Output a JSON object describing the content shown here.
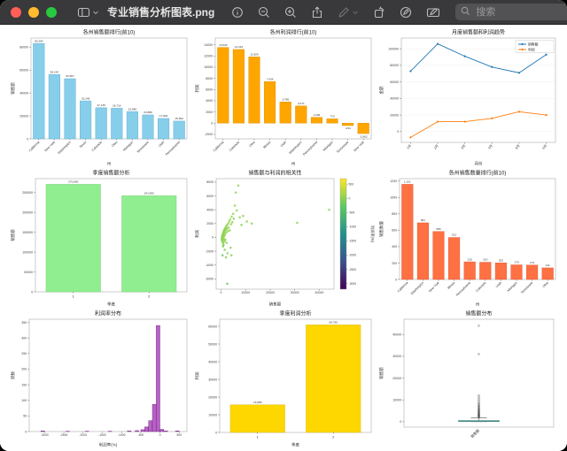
{
  "window": {
    "title": "专业销售分析图表.png"
  },
  "toolbar": {
    "search_placeholder": "搜索",
    "icons": {
      "sidebar": "split-panel",
      "chevron": "chevron-down",
      "info": "circled-i",
      "zoom_out": "magnifier-minus",
      "zoom_in": "magnifier-plus",
      "share": "box-arrow-up",
      "markup_pencil": "pencil (dimmed)",
      "rotate": "rotate-square-arrow",
      "annotate": "pen-in-circle",
      "markup_toolbar": "pencil-box",
      "search": "magnifier"
    }
  },
  "chart_data": [
    {
      "type": "bar",
      "rotate_xticks": true,
      "title": "各州销售额排行(前10)",
      "xlabel": "州",
      "ylabel": "销售额",
      "color": "#87CEEB",
      "edge": "#5aa7c9",
      "categories": [
        "California",
        "New York",
        "Washington",
        "Texas",
        "Colorado",
        "Ohio",
        "Michigan",
        "Tennessee",
        "Utah",
        "Pennsylvania"
      ],
      "values": [
        83254,
        56144,
        52507,
        33146,
        27135,
        26714,
        23848,
        20888,
        17802,
        15502
      ],
      "labels": [
        "83,254",
        "56,144",
        "52,507",
        "33,146",
        "27,135",
        "26,714",
        "23,848",
        "20,888",
        "17,802",
        "15,502"
      ],
      "ylim": [
        0,
        88000
      ],
      "yticks": [
        0,
        20000,
        40000,
        60000,
        80000
      ]
    },
    {
      "type": "bar",
      "rotate_xticks": true,
      "title": "各州利润排行(前10)",
      "xlabel": "州",
      "ylabel": "利润",
      "color": "#FFA500",
      "edge": "#d98c00",
      "categories": [
        "California",
        "Colorado",
        "Ohio",
        "Illinois",
        "Utah",
        "Washington",
        "Pennsylvania",
        "Michigan",
        "Tennessee",
        "New York"
      ],
      "values": [
        13525,
        13162,
        11829,
        7434,
        3786,
        3071,
        1049,
        770,
        -434,
        -1862
      ],
      "labels": [
        "13,525",
        "13,162",
        "11,829",
        "7,434",
        "3,786",
        "3,071",
        "1,049",
        "770",
        "-434",
        "-1,862"
      ],
      "ylim": [
        -2800,
        15200
      ],
      "yticks": [
        -2000,
        0,
        2000,
        4000,
        6000,
        8000,
        10000,
        12000,
        14000
      ]
    },
    {
      "type": "line",
      "title": "月度销售额和利润趋势",
      "xlabel": "月份",
      "ylabel": "金额",
      "categories": [
        "1月",
        "2月",
        "3月",
        "4月",
        "5月",
        "6月"
      ],
      "series": [
        {
          "name": "销售额",
          "color": "#1f77b4",
          "values": [
            73000,
            106000,
            91000,
            78000,
            71000,
            93000
          ]
        },
        {
          "name": "利润",
          "color": "#ff7f0e",
          "values": [
            -7000,
            12000,
            12000,
            16000,
            24000,
            20000
          ]
        }
      ],
      "ylim": [
        -13000,
        113000
      ],
      "yticks": [
        0,
        20000,
        40000,
        60000,
        80000,
        100000
      ]
    },
    {
      "type": "bar",
      "rotate_xticks": false,
      "title": "季度销售额分析",
      "xlabel": "季度",
      "ylabel": "销售额",
      "color": "#90EE90",
      "edge": "#6fcc6f",
      "categories": [
        "1",
        "2"
      ],
      "values": [
        270690,
        241850
      ],
      "labels": [
        "270,690",
        "241,850"
      ],
      "ylim": [
        0,
        285000
      ],
      "yticks": [
        0,
        50000,
        100000,
        150000,
        200000,
        250000
      ]
    },
    {
      "type": "scatter",
      "title": "销售额与利润的相关性",
      "xlabel": "销售额",
      "ylabel": "利润",
      "colorbar_label": "利润率(%)",
      "xlim": [
        -2000,
        46000
      ],
      "xticks": [
        0,
        10000,
        20000,
        30000,
        40000
      ],
      "ylim": [
        -7500,
        8500
      ],
      "yticks": [
        -6000,
        -4000,
        -2000,
        0,
        2000,
        4000,
        6000,
        8000
      ],
      "color_domain": [
        -3200,
        700
      ],
      "colorbar_ticks": [
        500,
        0,
        -500,
        -1000,
        -1500,
        -2000,
        -2500,
        -3000
      ],
      "points": [
        [
          250,
          -150,
          12
        ],
        [
          300,
          -350,
          5
        ],
        [
          350,
          80,
          18
        ],
        [
          400,
          -500,
          2
        ],
        [
          450,
          150,
          20
        ],
        [
          500,
          350,
          24
        ],
        [
          550,
          -250,
          8
        ],
        [
          600,
          -700,
          -15
        ],
        [
          650,
          200,
          22
        ],
        [
          700,
          450,
          26
        ],
        [
          750,
          -100,
          14
        ],
        [
          800,
          600,
          28
        ],
        [
          850,
          -900,
          -22
        ],
        [
          900,
          300,
          24
        ],
        [
          950,
          750,
          30
        ],
        [
          1000,
          -400,
          4
        ],
        [
          1050,
          500,
          26
        ],
        [
          1100,
          900,
          31
        ],
        [
          1150,
          -200,
          10
        ],
        [
          1200,
          650,
          28
        ],
        [
          1250,
          1050,
          32
        ],
        [
          1300,
          150,
          18
        ],
        [
          1350,
          800,
          30
        ],
        [
          1400,
          -600,
          -8
        ],
        [
          1450,
          950,
          31
        ],
        [
          1500,
          1200,
          33
        ],
        [
          1600,
          400,
          22
        ],
        [
          1700,
          1350,
          34
        ],
        [
          1800,
          -350,
          6
        ],
        [
          1900,
          1100,
          32
        ],
        [
          2000,
          1500,
          34
        ],
        [
          2100,
          700,
          26
        ],
        [
          2200,
          1650,
          35
        ],
        [
          2300,
          -800,
          -12
        ],
        [
          2400,
          1250,
          32
        ],
        [
          2500,
          1800,
          36
        ],
        [
          2700,
          900,
          27
        ],
        [
          2900,
          2000,
          36
        ],
        [
          3100,
          1400,
          32
        ],
        [
          3300,
          2300,
          38
        ],
        [
          3500,
          1000,
          25
        ],
        [
          3700,
          2600,
          39
        ],
        [
          3900,
          -1500,
          -25
        ],
        [
          4100,
          1900,
          33
        ],
        [
          4300,
          3000,
          40
        ],
        [
          4600,
          2200,
          35
        ],
        [
          4900,
          3400,
          42
        ],
        [
          5200,
          2700,
          38
        ],
        [
          5600,
          4600,
          45
        ],
        [
          6000,
          6500,
          52
        ],
        [
          6400,
          3900,
          42
        ],
        [
          7000,
          7500,
          55
        ],
        [
          7600,
          2900,
          30
        ],
        [
          8300,
          1800,
          15
        ],
        [
          9000,
          3100,
          22
        ],
        [
          10500,
          2300,
          14
        ],
        [
          12500,
          2000,
          10
        ],
        [
          2500,
          -6700,
          -280
        ],
        [
          2000,
          -2900,
          -70
        ],
        [
          2600,
          -2300,
          -50
        ],
        [
          4200,
          -2600,
          -40
        ],
        [
          1500,
          -1800,
          -90
        ],
        [
          800,
          -1300,
          -140
        ],
        [
          600,
          -2600,
          -260
        ],
        [
          1000,
          -1100,
          -60
        ],
        [
          31000,
          2100,
          5
        ],
        [
          44000,
          4000,
          8
        ]
      ]
    },
    {
      "type": "bar",
      "rotate_xticks": true,
      "title": "各州销售数量排行(前10)",
      "xlabel": "州",
      "ylabel": "销售数量",
      "color": "#FF7043",
      "edge": "#d9532a",
      "categories": [
        "California",
        "Washington",
        "New York",
        "Illinois",
        "Pennsylvania",
        "Colorado",
        "Utah",
        "Michigan",
        "Tennessee",
        "Ohio"
      ],
      "values": [
        1161,
        691,
        585,
        512,
        215,
        210,
        202,
        178,
        176,
        141
      ],
      "labels": [
        "1,161",
        "691",
        "585",
        "512",
        "215",
        "210",
        "202",
        "178",
        "176",
        "141"
      ],
      "ylim": [
        0,
        1230
      ],
      "yticks": [
        0,
        200,
        400,
        600,
        800,
        1000,
        1200
      ]
    },
    {
      "type": "hist",
      "title": "利润率分布",
      "xlabel": "利润率(%)",
      "ylabel": "频数",
      "color": "#AB47BC",
      "edge": "#6a1b7a",
      "bin_width": 95,
      "bars": [
        [
          -3050,
          2
        ],
        [
          -2400,
          1
        ],
        [
          -1900,
          1
        ],
        [
          -1300,
          1
        ],
        [
          -800,
          2
        ],
        [
          -600,
          3
        ],
        [
          -450,
          6
        ],
        [
          -350,
          15
        ],
        [
          -250,
          35
        ],
        [
          -150,
          87
        ],
        [
          -50,
          340
        ],
        [
          50,
          7
        ],
        [
          150,
          2
        ],
        [
          450,
          2
        ]
      ],
      "xlim": [
        -3400,
        700
      ],
      "xticks": [
        -3000,
        -2500,
        -2000,
        -1500,
        -1000,
        -500,
        0,
        500
      ],
      "ylim": [
        0,
        360
      ],
      "yticks": [
        0,
        50,
        100,
        150,
        200,
        250,
        300,
        350
      ]
    },
    {
      "type": "bar",
      "rotate_xticks": false,
      "title": "季度利润分析",
      "xlabel": "季度",
      "ylabel": "利润",
      "color": "#FFD700",
      "edge": "#d4af00",
      "categories": [
        "1",
        "2"
      ],
      "values": [
        15588,
        60790
      ],
      "labels": [
        "15,588",
        "60,790"
      ],
      "ylim": [
        0,
        64000
      ],
      "yticks": [
        0,
        10000,
        20000,
        30000,
        40000,
        50000,
        60000
      ]
    },
    {
      "type": "box",
      "title": "销售额分布",
      "xlabel": "",
      "ylabel": "销售额",
      "category": "销售额",
      "color": "#B2DFDB",
      "edge": "#4d8a82",
      "box": {
        "whisker_low": 5,
        "q1": 40,
        "median": 210,
        "q3": 580,
        "whisker_high": 1750
      },
      "outliers": [
        2000,
        2150,
        2300,
        2450,
        2600,
        2750,
        2900,
        3050,
        3200,
        3350,
        3500,
        3700,
        3900,
        4100,
        4300,
        4550,
        4800,
        5050,
        5300,
        5600,
        5900,
        6200,
        6600,
        7000,
        7400,
        7900,
        8400,
        9000,
        9700,
        10400,
        11200,
        12000,
        31000,
        44000
      ],
      "ylim": [
        -2500,
        47000
      ],
      "yticks": [
        0,
        10000,
        20000,
        30000,
        40000
      ]
    }
  ]
}
